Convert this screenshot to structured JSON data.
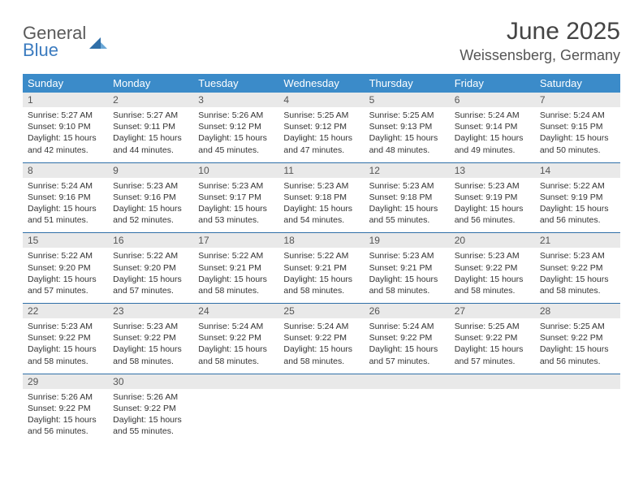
{
  "logo": {
    "text1": "General",
    "text2": "Blue"
  },
  "title": "June 2025",
  "location": "Weissensberg, Germany",
  "colors": {
    "header_bg": "#3b8bc9",
    "row_sep": "#2f6fa8",
    "daynum_bg": "#e9e9e9",
    "logo_gray": "#5a5a5a",
    "logo_blue": "#3b7bbf"
  },
  "daysOfWeek": [
    "Sunday",
    "Monday",
    "Tuesday",
    "Wednesday",
    "Thursday",
    "Friday",
    "Saturday"
  ],
  "weeks": [
    [
      {
        "n": "1",
        "sr": "5:27 AM",
        "ss": "9:10 PM",
        "dl": "15 hours and 42 minutes."
      },
      {
        "n": "2",
        "sr": "5:27 AM",
        "ss": "9:11 PM",
        "dl": "15 hours and 44 minutes."
      },
      {
        "n": "3",
        "sr": "5:26 AM",
        "ss": "9:12 PM",
        "dl": "15 hours and 45 minutes."
      },
      {
        "n": "4",
        "sr": "5:25 AM",
        "ss": "9:12 PM",
        "dl": "15 hours and 47 minutes."
      },
      {
        "n": "5",
        "sr": "5:25 AM",
        "ss": "9:13 PM",
        "dl": "15 hours and 48 minutes."
      },
      {
        "n": "6",
        "sr": "5:24 AM",
        "ss": "9:14 PM",
        "dl": "15 hours and 49 minutes."
      },
      {
        "n": "7",
        "sr": "5:24 AM",
        "ss": "9:15 PM",
        "dl": "15 hours and 50 minutes."
      }
    ],
    [
      {
        "n": "8",
        "sr": "5:24 AM",
        "ss": "9:16 PM",
        "dl": "15 hours and 51 minutes."
      },
      {
        "n": "9",
        "sr": "5:23 AM",
        "ss": "9:16 PM",
        "dl": "15 hours and 52 minutes."
      },
      {
        "n": "10",
        "sr": "5:23 AM",
        "ss": "9:17 PM",
        "dl": "15 hours and 53 minutes."
      },
      {
        "n": "11",
        "sr": "5:23 AM",
        "ss": "9:18 PM",
        "dl": "15 hours and 54 minutes."
      },
      {
        "n": "12",
        "sr": "5:23 AM",
        "ss": "9:18 PM",
        "dl": "15 hours and 55 minutes."
      },
      {
        "n": "13",
        "sr": "5:23 AM",
        "ss": "9:19 PM",
        "dl": "15 hours and 56 minutes."
      },
      {
        "n": "14",
        "sr": "5:22 AM",
        "ss": "9:19 PM",
        "dl": "15 hours and 56 minutes."
      }
    ],
    [
      {
        "n": "15",
        "sr": "5:22 AM",
        "ss": "9:20 PM",
        "dl": "15 hours and 57 minutes."
      },
      {
        "n": "16",
        "sr": "5:22 AM",
        "ss": "9:20 PM",
        "dl": "15 hours and 57 minutes."
      },
      {
        "n": "17",
        "sr": "5:22 AM",
        "ss": "9:21 PM",
        "dl": "15 hours and 58 minutes."
      },
      {
        "n": "18",
        "sr": "5:22 AM",
        "ss": "9:21 PM",
        "dl": "15 hours and 58 minutes."
      },
      {
        "n": "19",
        "sr": "5:23 AM",
        "ss": "9:21 PM",
        "dl": "15 hours and 58 minutes."
      },
      {
        "n": "20",
        "sr": "5:23 AM",
        "ss": "9:22 PM",
        "dl": "15 hours and 58 minutes."
      },
      {
        "n": "21",
        "sr": "5:23 AM",
        "ss": "9:22 PM",
        "dl": "15 hours and 58 minutes."
      }
    ],
    [
      {
        "n": "22",
        "sr": "5:23 AM",
        "ss": "9:22 PM",
        "dl": "15 hours and 58 minutes."
      },
      {
        "n": "23",
        "sr": "5:23 AM",
        "ss": "9:22 PM",
        "dl": "15 hours and 58 minutes."
      },
      {
        "n": "24",
        "sr": "5:24 AM",
        "ss": "9:22 PM",
        "dl": "15 hours and 58 minutes."
      },
      {
        "n": "25",
        "sr": "5:24 AM",
        "ss": "9:22 PM",
        "dl": "15 hours and 58 minutes."
      },
      {
        "n": "26",
        "sr": "5:24 AM",
        "ss": "9:22 PM",
        "dl": "15 hours and 57 minutes."
      },
      {
        "n": "27",
        "sr": "5:25 AM",
        "ss": "9:22 PM",
        "dl": "15 hours and 57 minutes."
      },
      {
        "n": "28",
        "sr": "5:25 AM",
        "ss": "9:22 PM",
        "dl": "15 hours and 56 minutes."
      }
    ],
    [
      {
        "n": "29",
        "sr": "5:26 AM",
        "ss": "9:22 PM",
        "dl": "15 hours and 56 minutes."
      },
      {
        "n": "30",
        "sr": "5:26 AM",
        "ss": "9:22 PM",
        "dl": "15 hours and 55 minutes."
      },
      null,
      null,
      null,
      null,
      null
    ]
  ],
  "labels": {
    "sunrise": "Sunrise: ",
    "sunset": "Sunset: ",
    "daylight": "Daylight: "
  }
}
